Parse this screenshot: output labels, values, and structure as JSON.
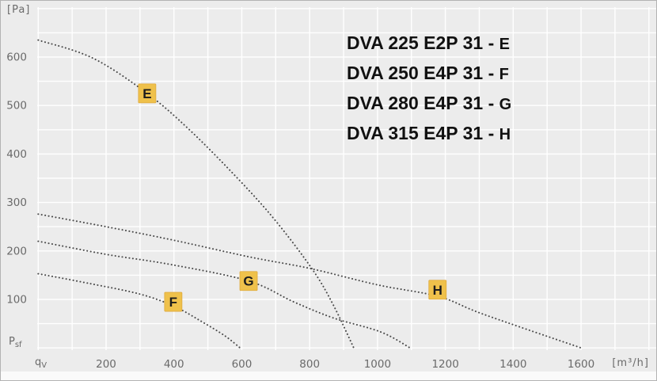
{
  "figure": {
    "y_unit_label": "[Pa]",
    "x_unit_label": "[m³/h]",
    "y_axis_symbol": {
      "main": "P",
      "sub": "sf"
    },
    "x_axis_symbol": {
      "main": "q",
      "sub": "V"
    },
    "legend_sep": " - "
  },
  "chart_data": {
    "type": "line",
    "title": "",
    "xlabel": "qV [m³/h]",
    "ylabel": "Psf [Pa]",
    "x_range": [
      0,
      1800
    ],
    "y_range": [
      0,
      700
    ],
    "x_ticks": [
      200,
      400,
      600,
      800,
      1000,
      1200,
      1400,
      1600
    ],
    "y_ticks": [
      100,
      200,
      300,
      400,
      500,
      600
    ],
    "grid": {
      "x_step": 100,
      "y_step": 50,
      "on": true
    },
    "line_style": "dotted",
    "legend_position": "top-right-inside",
    "series": [
      {
        "id": "E",
        "model": "DVA 225 E2P 31",
        "letter": "E",
        "marker_at": {
          "q": 321,
          "P": 525
        },
        "points": [
          [
            0,
            635
          ],
          [
            160,
            598
          ],
          [
            321,
            525
          ],
          [
            450,
            447
          ],
          [
            590,
            348
          ],
          [
            700,
            262
          ],
          [
            810,
            160
          ],
          [
            870,
            88
          ],
          [
            930,
            0
          ]
        ]
      },
      {
        "id": "F",
        "model": "DVA 250 E4P 31",
        "letter": "F",
        "marker_at": {
          "q": 398,
          "P": 95
        },
        "points": [
          [
            0,
            153
          ],
          [
            150,
            133
          ],
          [
            300,
            111
          ],
          [
            400,
            86
          ],
          [
            480,
            55
          ],
          [
            550,
            25
          ],
          [
            595,
            0
          ]
        ]
      },
      {
        "id": "G",
        "model": "DVA 280 E4P 31",
        "letter": "G",
        "marker_at": {
          "q": 620,
          "P": 138
        },
        "points": [
          [
            0,
            220
          ],
          [
            200,
            193
          ],
          [
            390,
            172
          ],
          [
            620,
            138
          ],
          [
            753,
            95
          ],
          [
            869,
            62
          ],
          [
            1009,
            33
          ],
          [
            1096,
            0
          ]
        ]
      },
      {
        "id": "H",
        "model": "DVA 315 E4P 31",
        "letter": "H",
        "marker_at": {
          "q": 1177,
          "P": 120
        },
        "points": [
          [
            0,
            276
          ],
          [
            200,
            250
          ],
          [
            400,
            222
          ],
          [
            620,
            188
          ],
          [
            800,
            164
          ],
          [
            1000,
            130
          ],
          [
            1180,
            106
          ],
          [
            1310,
            70
          ],
          [
            1600,
            0
          ]
        ]
      }
    ],
    "colors": {
      "background": "#ececec",
      "gridline": "#ffffff",
      "curve": "#4a4a4a",
      "marker_fill": "#efc14b",
      "marker_border": "#dfa93c",
      "marker_text": "#1c1c1c",
      "tick_text": "#6a6a6a",
      "legend_text": "#111111"
    }
  }
}
